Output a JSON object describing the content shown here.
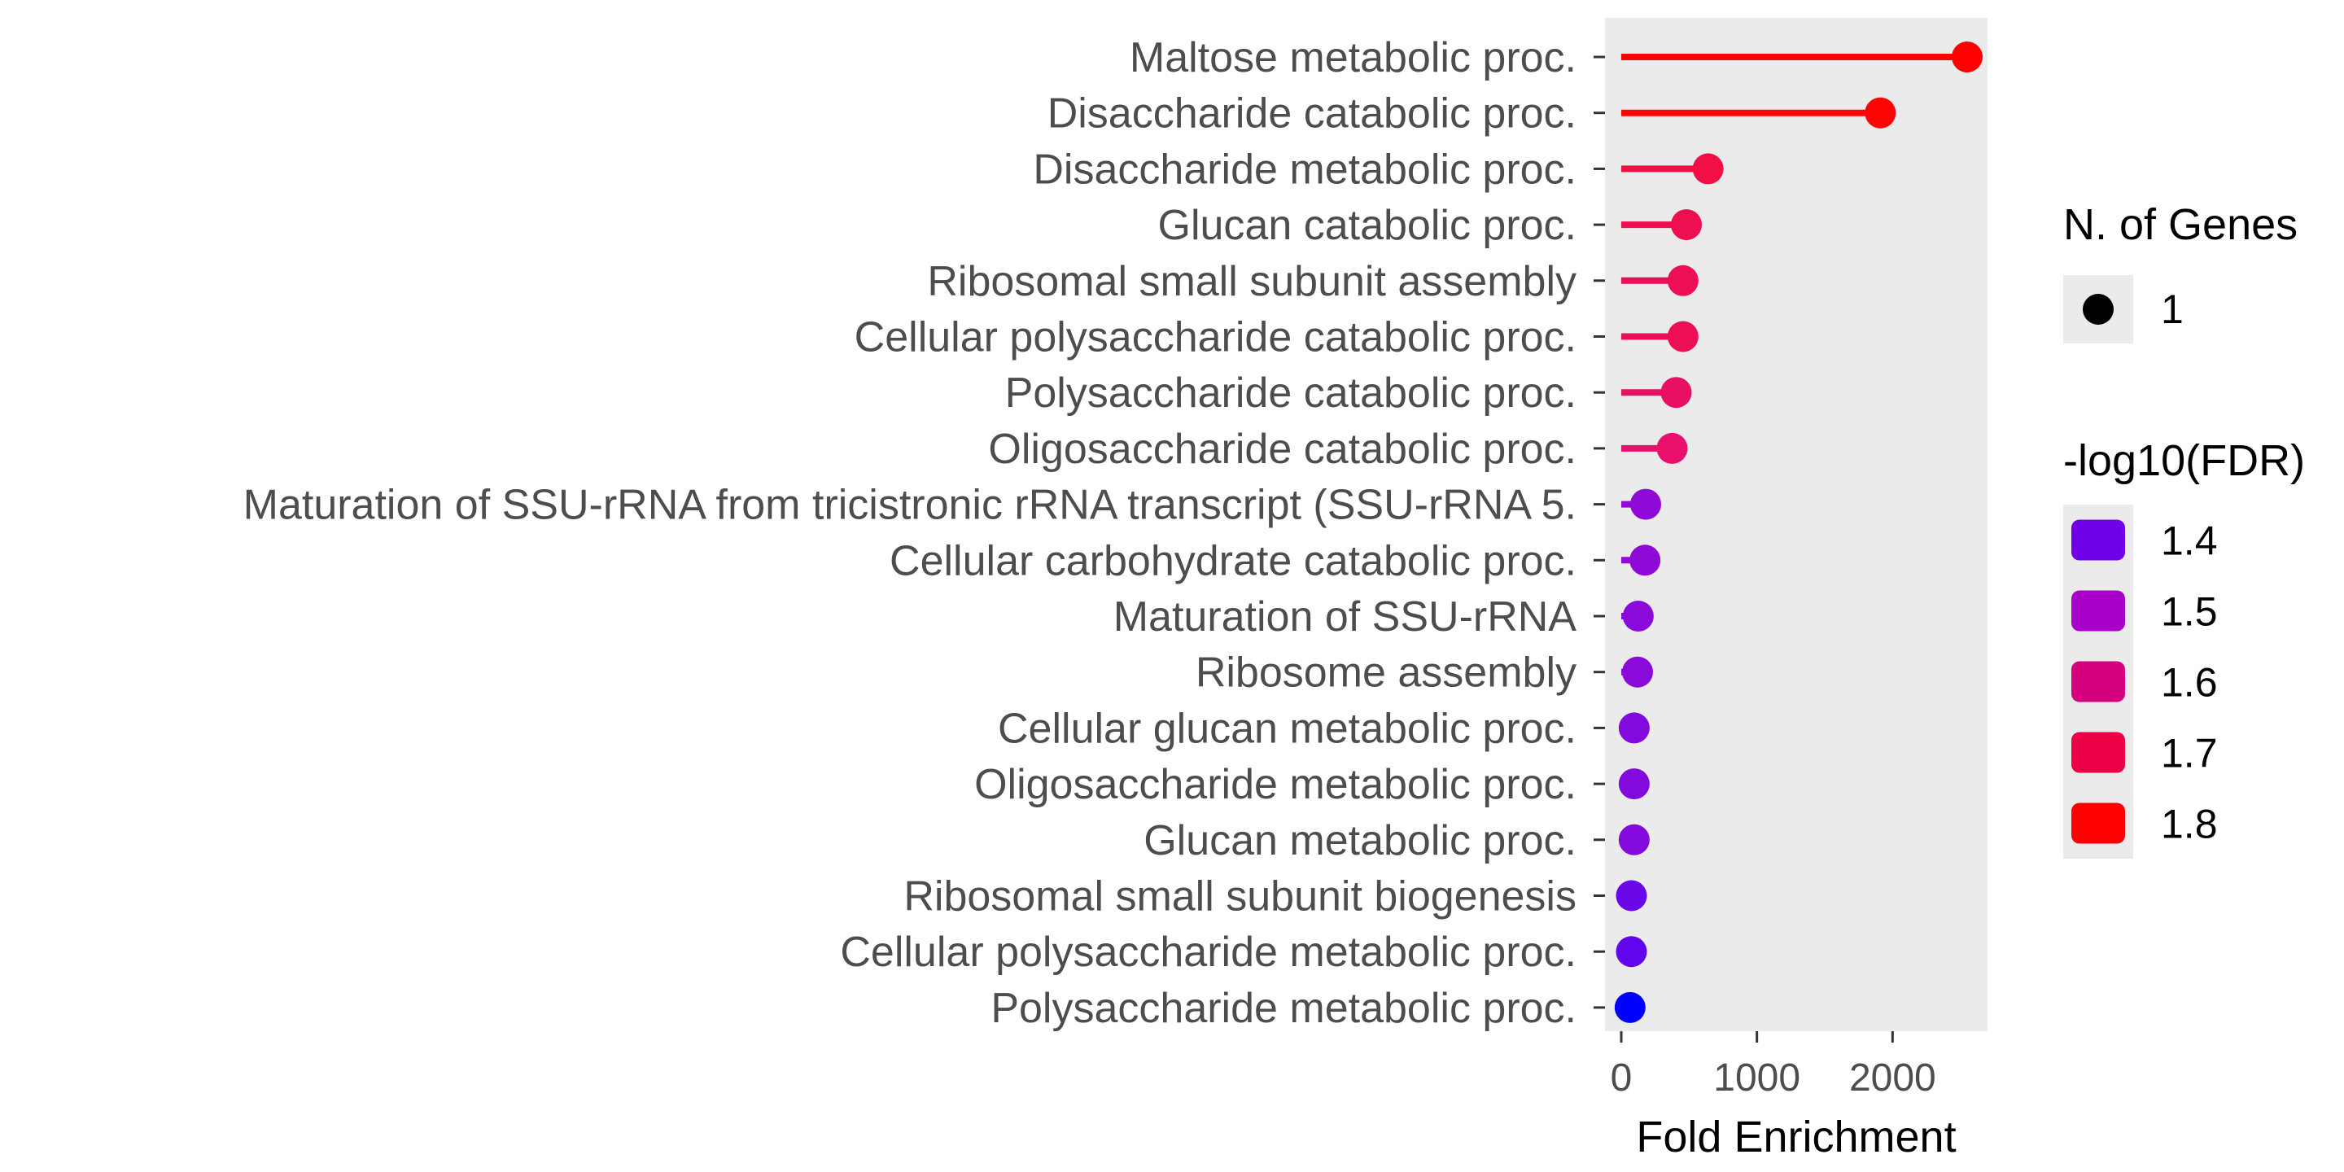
{
  "chart_data": {
    "type": "lollipop",
    "xlabel": "Fold Enrichment",
    "ylabel": "",
    "xlim": [
      -120,
      2700
    ],
    "x_ticks": [
      "0",
      "1000",
      "2000"
    ],
    "x_tick_values": [
      0,
      1000,
      2000
    ],
    "grid": false,
    "panel_background": "#ebebeb",
    "categories": [
      "Maltose metabolic proc.",
      "Disaccharide catabolic proc.",
      "Disaccharide metabolic proc.",
      "Glucan catabolic proc.",
      "Ribosomal small subunit assembly",
      "Cellular polysaccharide catabolic proc.",
      "Polysaccharide catabolic proc.",
      "Oligosaccharide catabolic proc.",
      "Maturation of SSU-rRNA from tricistronic rRNA transcript (SSU-rRNA 5.",
      "Cellular carbohydrate catabolic proc.",
      "Maturation of SSU-rRNA",
      "Ribosome assembly",
      "Cellular glucan metabolic proc.",
      "Oligosaccharide metabolic proc.",
      "Glucan metabolic proc.",
      "Ribosomal small subunit biogenesis",
      "Cellular polysaccharide metabolic proc.",
      "Polysaccharide metabolic proc."
    ],
    "values": [
      2550,
      1910,
      640,
      480,
      455,
      455,
      405,
      375,
      180,
      175,
      125,
      120,
      95,
      95,
      95,
      75,
      75,
      65
    ],
    "colors": [
      "#ff0000",
      "#fe0505",
      "#f20f45",
      "#ee0f50",
      "#ec0f55",
      "#ec0f55",
      "#e81063",
      "#e8106b",
      "#8f0ad6",
      "#8f0ad6",
      "#8a0ad9",
      "#8a0ad9",
      "#820add",
      "#820add",
      "#820add",
      "#6a07e6",
      "#6005ec",
      "#0000ff"
    ],
    "legend_size": {
      "title": "N. of Genes",
      "labels": [
        "1"
      ]
    },
    "legend_color": {
      "title": "-log10(FDR)",
      "labels": [
        "1.4",
        "1.5",
        "1.6",
        "1.7",
        "1.8"
      ],
      "colors": [
        "#7000e8",
        "#a800c8",
        "#d4007e",
        "#ec0046",
        "#ff0000"
      ]
    }
  }
}
